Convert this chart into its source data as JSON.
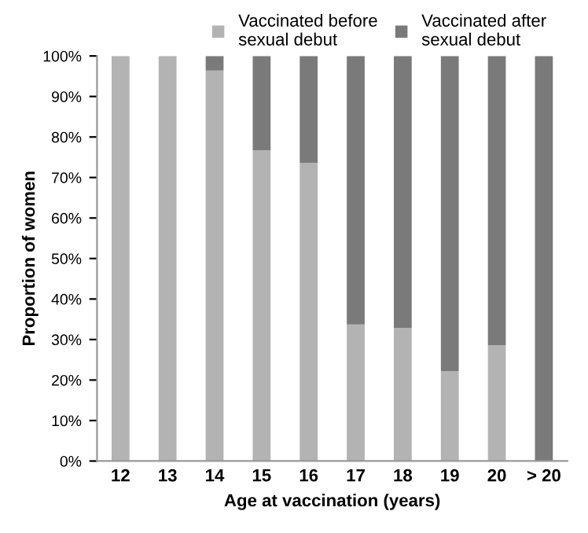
{
  "chart_data": {
    "type": "bar",
    "stacked": true,
    "xlabel": "Age at vaccination (years)",
    "ylabel": "Proportion of women",
    "categories": [
      "12",
      "13",
      "14",
      "15",
      "16",
      "17",
      "18",
      "19",
      "20",
      "> 20"
    ],
    "series": [
      {
        "name": "Vaccinated before sexual debut",
        "color": "#b3b3b3",
        "values": [
          100,
          100,
          96.4,
          76.7,
          73.6,
          33.7,
          32.9,
          22.2,
          28.6,
          0
        ]
      },
      {
        "name": "Vaccinated after sexual debut",
        "color": "#7a7a7a",
        "values": [
          0,
          0,
          3.6,
          23.3,
          26.4,
          66.3,
          67.1,
          77.8,
          71.4,
          100
        ]
      }
    ],
    "ylim": [
      0,
      100
    ],
    "yticks": [
      {
        "value": 0,
        "label": "0%"
      },
      {
        "value": 10,
        "label": "10%"
      },
      {
        "value": 20,
        "label": "20%"
      },
      {
        "value": 30,
        "label": "30%"
      },
      {
        "value": 40,
        "label": "40%"
      },
      {
        "value": 50,
        "label": "50%"
      },
      {
        "value": 60,
        "label": "60%"
      },
      {
        "value": 70,
        "label": "70%"
      },
      {
        "value": 80,
        "label": "80%"
      },
      {
        "value": 90,
        "label": "90%"
      },
      {
        "value": 100,
        "label": "100%"
      }
    ],
    "grid": false,
    "legend": "top"
  }
}
